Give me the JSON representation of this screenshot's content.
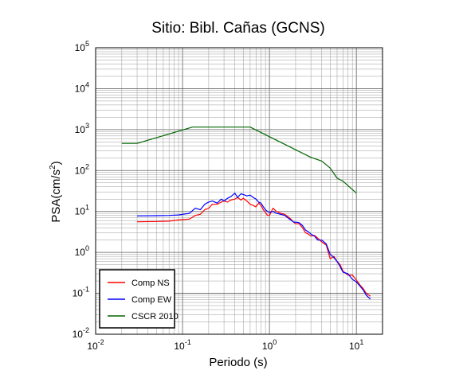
{
  "chart_data": {
    "type": "line",
    "title": "Sitio: Bibl. Cañas (GCNS)",
    "xlabel": "Periodo (s)",
    "ylabel_main": "PSA(cm/s",
    "ylabel_sup": "2",
    "ylabel_close": ")",
    "x_scale": "log",
    "y_scale": "log",
    "xlim": [
      0.01,
      20
    ],
    "ylim": [
      0.01,
      100000
    ],
    "grid": true,
    "legend_position": "bottom-left",
    "x_ticks": [
      {
        "value": 0.01,
        "base": "10",
        "exp": "-2"
      },
      {
        "value": 0.1,
        "base": "10",
        "exp": "-1"
      },
      {
        "value": 1,
        "base": "10",
        "exp": "0"
      },
      {
        "value": 10,
        "base": "10",
        "exp": "1"
      }
    ],
    "y_ticks": [
      {
        "value": 0.01,
        "base": "10",
        "exp": "-2"
      },
      {
        "value": 0.1,
        "base": "10",
        "exp": "-1"
      },
      {
        "value": 1,
        "base": "10",
        "exp": "0"
      },
      {
        "value": 10,
        "base": "10",
        "exp": "1"
      },
      {
        "value": 100,
        "base": "10",
        "exp": "2"
      },
      {
        "value": 1000,
        "base": "10",
        "exp": "3"
      },
      {
        "value": 10000,
        "base": "10",
        "exp": "4"
      },
      {
        "value": 100000,
        "base": "10",
        "exp": "5"
      }
    ],
    "series": [
      {
        "name": "Comp NS",
        "color": "#ff0000",
        "points": [
          [
            0.03,
            5.6
          ],
          [
            0.05,
            5.7
          ],
          [
            0.07,
            5.8
          ],
          [
            0.09,
            6.2
          ],
          [
            0.1,
            6.3
          ],
          [
            0.12,
            6.5
          ],
          [
            0.14,
            8.0
          ],
          [
            0.16,
            8.5
          ],
          [
            0.18,
            11
          ],
          [
            0.2,
            12
          ],
          [
            0.22,
            15
          ],
          [
            0.25,
            15
          ],
          [
            0.28,
            17
          ],
          [
            0.3,
            18
          ],
          [
            0.33,
            17
          ],
          [
            0.36,
            19
          ],
          [
            0.4,
            20
          ],
          [
            0.43,
            22
          ],
          [
            0.47,
            19
          ],
          [
            0.5,
            21
          ],
          [
            0.55,
            18
          ],
          [
            0.6,
            15
          ],
          [
            0.65,
            14
          ],
          [
            0.7,
            13
          ],
          [
            0.75,
            16
          ],
          [
            0.8,
            14
          ],
          [
            0.85,
            11
          ],
          [
            0.9,
            9.5
          ],
          [
            0.95,
            8.0
          ],
          [
            1.0,
            8.0
          ],
          [
            1.1,
            12
          ],
          [
            1.2,
            10
          ],
          [
            1.35,
            9.0
          ],
          [
            1.5,
            8.5
          ],
          [
            1.7,
            7.0
          ],
          [
            1.9,
            5.5
          ],
          [
            2.0,
            5.0
          ],
          [
            2.2,
            5.0
          ],
          [
            2.4,
            4.0
          ],
          [
            2.6,
            3.0
          ],
          [
            2.8,
            2.8
          ],
          [
            3.0,
            2.5
          ],
          [
            3.3,
            2.6
          ],
          [
            3.6,
            2.2
          ],
          [
            4.0,
            1.8
          ],
          [
            4.5,
            1.5
          ],
          [
            5.0,
            0.7
          ],
          [
            5.5,
            0.8
          ],
          [
            6.0,
            0.6
          ],
          [
            6.5,
            0.5
          ],
          [
            7.0,
            0.35
          ],
          [
            8.0,
            0.28
          ],
          [
            9.0,
            0.28
          ],
          [
            10,
            0.21
          ],
          [
            11,
            0.16
          ],
          [
            12,
            0.13
          ],
          [
            13,
            0.1
          ],
          [
            14.5,
            0.085
          ]
        ]
      },
      {
        "name": "Comp EW",
        "color": "#0000ff",
        "points": [
          [
            0.03,
            7.8
          ],
          [
            0.05,
            7.9
          ],
          [
            0.07,
            8.0
          ],
          [
            0.09,
            8.2
          ],
          [
            0.1,
            8.5
          ],
          [
            0.12,
            9.0
          ],
          [
            0.14,
            12
          ],
          [
            0.16,
            11
          ],
          [
            0.18,
            15
          ],
          [
            0.2,
            17
          ],
          [
            0.22,
            18
          ],
          [
            0.25,
            16
          ],
          [
            0.28,
            20
          ],
          [
            0.3,
            18
          ],
          [
            0.33,
            21
          ],
          [
            0.36,
            23
          ],
          [
            0.4,
            28
          ],
          [
            0.43,
            22
          ],
          [
            0.47,
            27
          ],
          [
            0.5,
            26
          ],
          [
            0.55,
            24
          ],
          [
            0.6,
            25
          ],
          [
            0.65,
            22
          ],
          [
            0.7,
            20
          ],
          [
            0.75,
            17
          ],
          [
            0.8,
            16
          ],
          [
            0.85,
            13
          ],
          [
            0.9,
            11
          ],
          [
            0.95,
            10
          ],
          [
            1.0,
            9.5
          ],
          [
            1.1,
            10
          ],
          [
            1.2,
            9.0
          ],
          [
            1.35,
            8.5
          ],
          [
            1.5,
            8.0
          ],
          [
            1.7,
            6.5
          ],
          [
            1.9,
            5.5
          ],
          [
            2.0,
            5.5
          ],
          [
            2.2,
            5.3
          ],
          [
            2.4,
            4.5
          ],
          [
            2.6,
            3.5
          ],
          [
            2.8,
            3.2
          ],
          [
            3.0,
            2.8
          ],
          [
            3.3,
            2.5
          ],
          [
            3.6,
            2.0
          ],
          [
            4.0,
            2.0
          ],
          [
            4.5,
            1.6
          ],
          [
            5.0,
            0.9
          ],
          [
            5.5,
            0.75
          ],
          [
            6.0,
            0.6
          ],
          [
            6.5,
            0.45
          ],
          [
            7.0,
            0.33
          ],
          [
            8.0,
            0.3
          ],
          [
            9.0,
            0.22
          ],
          [
            10,
            0.19
          ],
          [
            11,
            0.15
          ],
          [
            12,
            0.12
          ],
          [
            13,
            0.09
          ],
          [
            14.5,
            0.072
          ]
        ]
      },
      {
        "name": "CSCR 2010",
        "color": "#006400",
        "points": [
          [
            0.02,
            460
          ],
          [
            0.03,
            460
          ],
          [
            0.13,
            1150
          ],
          [
            0.6,
            1150
          ],
          [
            3.0,
            210
          ],
          [
            4.0,
            170
          ],
          [
            5.0,
            115
          ],
          [
            6.0,
            65
          ],
          [
            7.0,
            55
          ],
          [
            10,
            28
          ]
        ]
      }
    ]
  }
}
